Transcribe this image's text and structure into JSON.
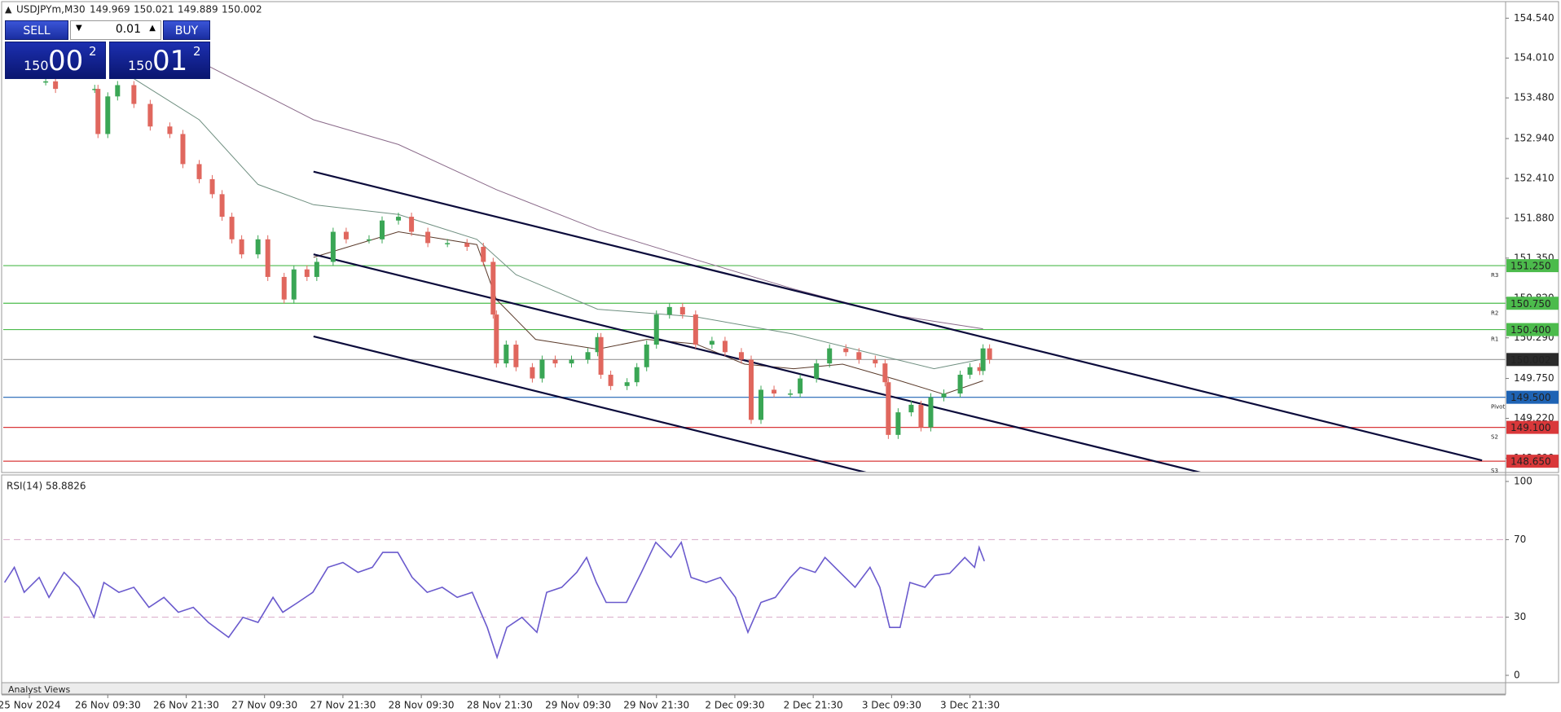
{
  "header": {
    "symbol": "USDJPYm,M30",
    "ohlc": [
      149.969,
      150.021,
      149.889,
      150.002
    ]
  },
  "trade_panel": {
    "sell": "SELL",
    "buy": "BUY",
    "lot": "0.01",
    "sell_price": [
      "150",
      "00",
      "2"
    ],
    "buy_price": [
      "150",
      "01",
      "2"
    ]
  },
  "bottom_tab": "Analyst Views",
  "chart_data": {
    "type": "candlestick",
    "up_color": "#3aa655",
    "down_color": "#e0675e",
    "x": [
      2.5,
      4,
      10,
      10.5,
      12,
      13.5,
      16,
      18.5,
      21.5,
      23.5,
      26,
      28,
      29.5,
      31,
      32.5,
      35,
      36.5,
      39,
      40.5,
      42.5,
      44,
      46.5,
      48.5,
      52,
      54,
      56.5,
      58.5,
      61,
      64,
      67,
      69.5,
      71,
      71.5,
      73,
      74.5,
      77,
      78.5,
      80.5,
      83,
      85.5,
      87,
      87.5,
      89,
      91.5,
      93,
      94.5,
      96,
      98,
      100,
      102,
      104.5,
      106.5,
      109,
      110.5,
      112,
      114,
      116.5,
      118,
      120.5,
      122.5,
      125,
      127,
      129.5,
      131,
      131.5,
      133,
      135,
      136.5,
      138,
      140,
      142.5,
      144,
      145.5,
      146,
      147
    ],
    "values": [
      153.7,
      153.6,
      153.6,
      153.0,
      153.5,
      153.65,
      153.4,
      153.1,
      153.0,
      152.6,
      152.4,
      152.2,
      151.9,
      151.6,
      151.4,
      151.6,
      151.1,
      150.8,
      151.2,
      151.1,
      151.3,
      151.7,
      151.6,
      151.6,
      151.85,
      151.9,
      151.7,
      151.55,
      151.55,
      151.5,
      151.3,
      150.6,
      149.95,
      150.2,
      149.9,
      149.75,
      150.0,
      149.95,
      150.0,
      150.1,
      150.3,
      149.8,
      149.65,
      149.7,
      149.9,
      150.2,
      150.6,
      150.7,
      150.6,
      150.2,
      150.25,
      150.1,
      150.0,
      149.2,
      149.6,
      149.55,
      149.55,
      149.75,
      149.95,
      150.15,
      150.1,
      150.0,
      149.95,
      149.7,
      149.0,
      149.3,
      149.4,
      149.1,
      149.5,
      149.55,
      149.8,
      149.9,
      149.85,
      150.15,
      150.0
    ],
    "xlim": [
      -4,
      226
    ],
    "xticks": [
      {
        "value": 0,
        "label": "25 Nov 2024"
      },
      {
        "value": 12,
        "label": "26 Nov 09:30"
      },
      {
        "value": 24,
        "label": "26 Nov 21:30"
      },
      {
        "value": 36,
        "label": "27 Nov 09:30"
      },
      {
        "value": 48,
        "label": "27 Nov 21:30"
      },
      {
        "value": 60,
        "label": "28 Nov 09:30"
      },
      {
        "value": 72,
        "label": "28 Nov 21:30"
      },
      {
        "value": 84,
        "label": "29 Nov 09:30"
      },
      {
        "value": 96,
        "label": "29 Nov 21:30"
      },
      {
        "value": 108,
        "label": "2 Dec 09:30"
      },
      {
        "value": 120,
        "label": "2 Dec 21:30"
      },
      {
        "value": 132,
        "label": "3 Dec 09:30"
      },
      {
        "value": 144,
        "label": "3 Dec 21:30"
      }
    ],
    "ylim": [
      148.5,
      154.76
    ],
    "yticks": [
      {
        "value": 154.54,
        "label": "154.540"
      },
      {
        "value": 154.01,
        "label": "154.010"
      },
      {
        "value": 153.48,
        "label": "153.480"
      },
      {
        "value": 152.94,
        "label": "152.940"
      },
      {
        "value": 152.41,
        "label": "152.410"
      },
      {
        "value": 151.88,
        "label": "151.880"
      },
      {
        "value": 151.35,
        "label": "151.350"
      },
      {
        "value": 150.82,
        "label": "150.820"
      },
      {
        "value": 150.29,
        "label": "150.290"
      },
      {
        "value": 149.75,
        "label": "149.750"
      },
      {
        "value": 149.22,
        "label": "149.220"
      },
      {
        "value": 148.69,
        "label": "148.690"
      }
    ],
    "levels": [
      {
        "value": 151.25,
        "label": "151.250",
        "color": "#4cbb4c",
        "tag": "R3"
      },
      {
        "value": 150.75,
        "label": "150.750",
        "color": "#4cbb4c",
        "tag": "R2"
      },
      {
        "value": 150.4,
        "label": "150.400",
        "color": "#4cbb4c",
        "tag": "R1"
      },
      {
        "value": 150.002,
        "label": "150.002",
        "color": "#9a9a9a",
        "box_color": "#2b2b2b"
      },
      {
        "value": 149.5,
        "label": "149.500",
        "color": "#1e63b4",
        "tag": "Pivot"
      },
      {
        "value": 149.1,
        "label": "149.100",
        "color": "#d9383a",
        "tag": "S2"
      },
      {
        "value": 148.65,
        "label": "148.650",
        "color": "#d9383a",
        "tag": "S3"
      }
    ],
    "moving_averages": [
      {
        "color": "#8a6a8a",
        "x": [
          25,
          43.5,
          56.5,
          71.5,
          87,
          102,
          117,
          132.5,
          146
        ],
        "values": [
          154.01,
          153.19,
          152.86,
          152.26,
          151.73,
          151.33,
          150.94,
          150.59,
          150.41
        ]
      },
      {
        "color": "#6f8f80",
        "x": [
          15,
          26,
          35,
          43.5,
          56.5,
          68.5,
          74.5,
          87,
          102,
          117,
          129.5,
          138.5,
          146
        ],
        "values": [
          153.79,
          153.19,
          152.33,
          152.06,
          151.93,
          151.6,
          151.13,
          150.67,
          150.57,
          150.34,
          150.07,
          149.88,
          150.01
        ]
      },
      {
        "color": "#5a3a2a",
        "x": [
          43.5,
          56.5,
          68.5,
          71.5,
          77.5,
          87,
          94.5,
          102,
          109.5,
          117,
          124.5,
          132.5,
          140,
          146
        ],
        "values": [
          151.36,
          151.7,
          151.53,
          150.8,
          150.27,
          150.14,
          150.27,
          150.21,
          149.94,
          149.88,
          149.94,
          149.74,
          149.54,
          149.72
        ]
      }
    ],
    "channel_color": "#0b0b3b",
    "channel": [
      {
        "x": [
          43.5,
          222.4
        ],
        "values": [
          152.5,
          148.66
        ]
      },
      {
        "x": [
          43.5,
          180.2
        ],
        "values": [
          151.4,
          148.48
        ]
      },
      {
        "x": [
          43.5,
          129
        ],
        "values": [
          150.31,
          148.48
        ]
      }
    ],
    "rsi": {
      "title": "RSI(14) 58.8826",
      "color": "#6a5acd",
      "x": [
        -3.8,
        -2.3,
        -0.8,
        1.5,
        3,
        5.3,
        7.6,
        9.9,
        11.4,
        13.7,
        16,
        18.3,
        20.6,
        22.8,
        25.1,
        27.4,
        30.5,
        32.7,
        35,
        37.3,
        38.8,
        41.1,
        43.4,
        45.7,
        48,
        50.3,
        52.5,
        54.1,
        56.4,
        58.6,
        60.9,
        63.2,
        65.5,
        67.8,
        70.1,
        71.6,
        73.1,
        75.4,
        77.7,
        79.2,
        81.5,
        83.8,
        85.3,
        86.8,
        88.3,
        91.4,
        93.7,
        95.9,
        98.2,
        99.8,
        101.3,
        103.6,
        105.8,
        108.1,
        110,
        112,
        114.2,
        116.5,
        118,
        120.3,
        121.8,
        124.1,
        126.4,
        128.7,
        130.2,
        131.7,
        133.3,
        134.8,
        137.1,
        138.6,
        140.9,
        143.2,
        144.7,
        145.4,
        146.2
      ],
      "values": [
        47.9,
        55.7,
        42.8,
        50.5,
        40.2,
        53.1,
        45.4,
        29.9,
        47.9,
        42.8,
        45.4,
        35.1,
        40.2,
        32.5,
        35.1,
        27.3,
        19.6,
        29.9,
        27.3,
        40.2,
        32.5,
        37.6,
        42.8,
        55.7,
        58.2,
        53.1,
        55.7,
        63.4,
        63.4,
        50.5,
        42.8,
        45.4,
        40.2,
        42.8,
        24.7,
        9.3,
        24.7,
        29.9,
        22.2,
        42.8,
        45.4,
        53.1,
        60.8,
        47.9,
        37.6,
        37.6,
        53.1,
        68.6,
        60.8,
        68.6,
        50.5,
        47.9,
        50.5,
        40.2,
        22.2,
        37.6,
        40.2,
        50.5,
        55.7,
        53.1,
        60.8,
        53.1,
        45.4,
        55.7,
        45.4,
        24.7,
        24.7,
        47.9,
        45.4,
        51.5,
        52.6,
        60.8,
        55.7,
        66,
        58.9
      ],
      "ylim": [
        0,
        100
      ],
      "yticks": [
        0,
        30,
        70,
        100
      ],
      "levels": [
        30,
        70
      ],
      "level_color": "#d8a8c8"
    }
  }
}
